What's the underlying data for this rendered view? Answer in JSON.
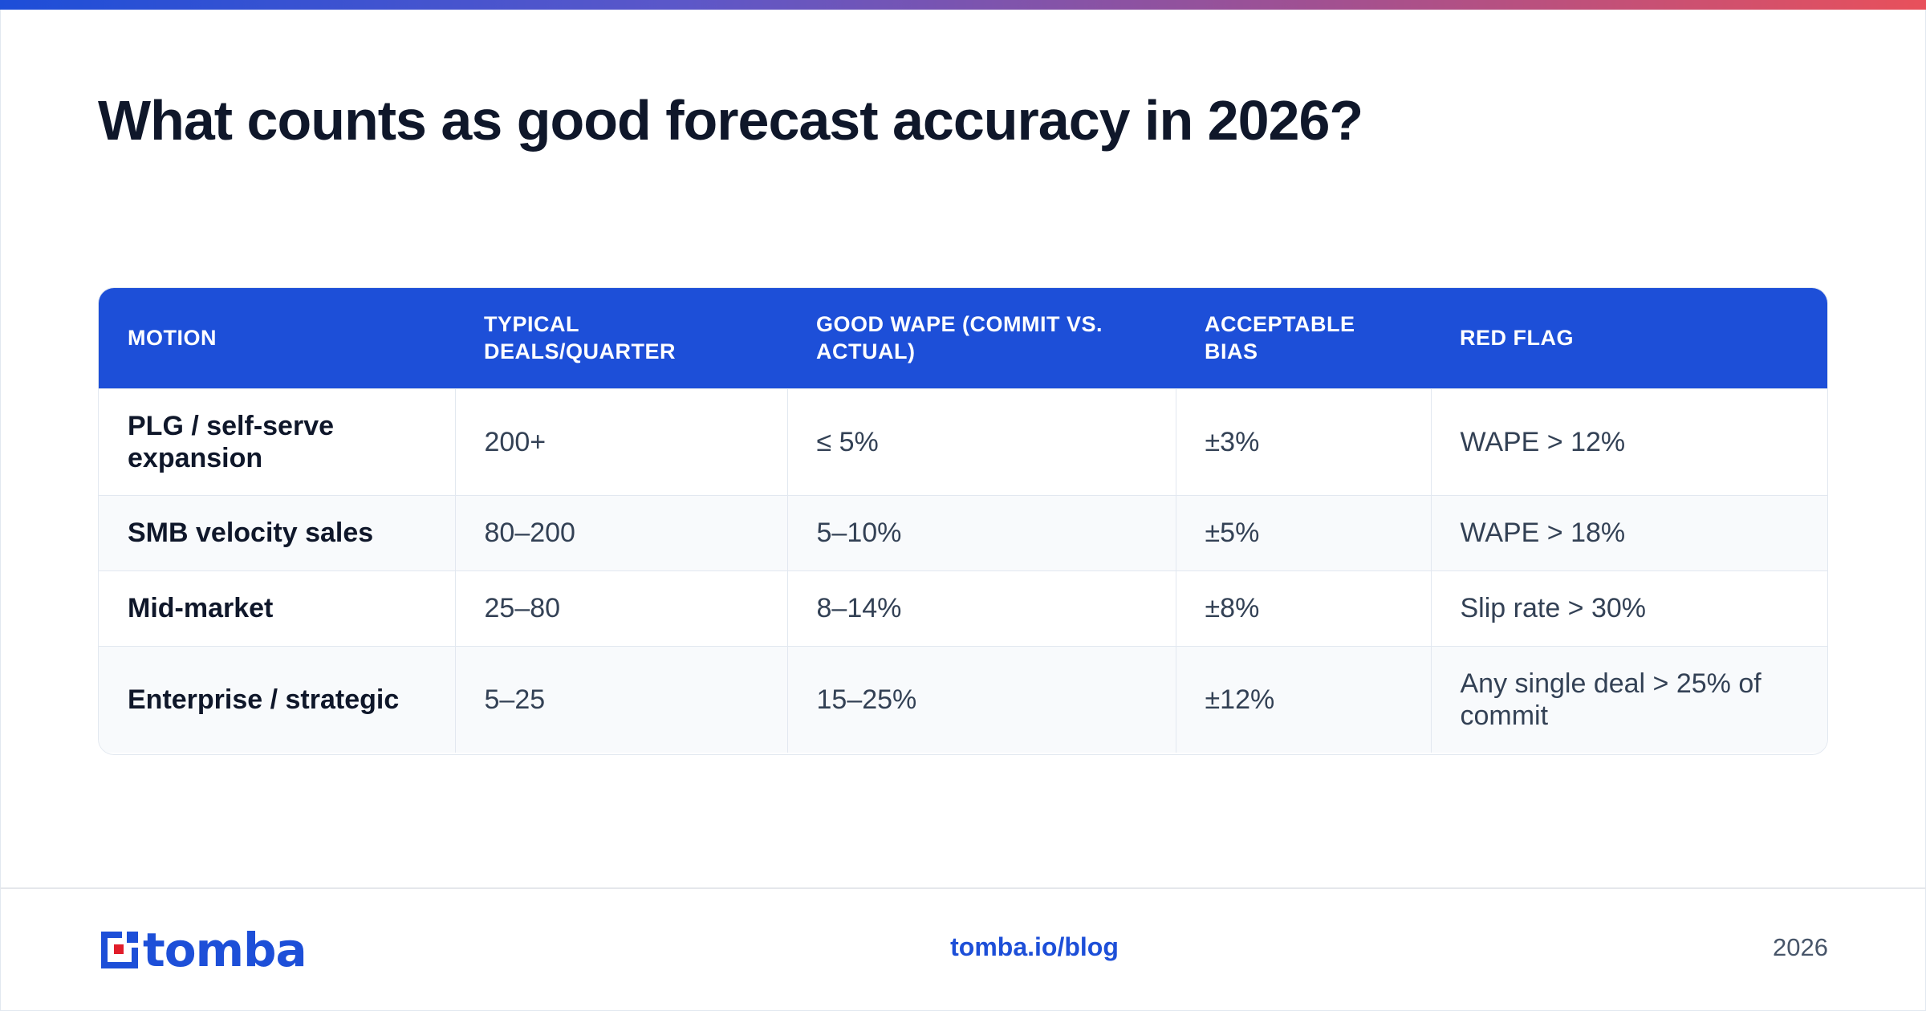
{
  "title": "What counts as good forecast accuracy in 2026?",
  "table": {
    "headers": [
      "MOTION",
      "TYPICAL DEALS/QUARTER",
      "GOOD WAPE (COMMIT VS. ACTUAL)",
      "ACCEPTABLE BIAS",
      "RED FLAG"
    ],
    "rows": [
      {
        "motion": "PLG / self-serve expansion",
        "deals": "200+",
        "wape": "≤ 5%",
        "bias": "±3%",
        "red_flag": "WAPE > 12%"
      },
      {
        "motion": "SMB velocity sales",
        "deals": "80–200",
        "wape": "5–10%",
        "bias": "±5%",
        "red_flag": "WAPE > 18%"
      },
      {
        "motion": "Mid-market",
        "deals": "25–80",
        "wape": "8–14%",
        "bias": "±8%",
        "red_flag": "Slip rate > 30%"
      },
      {
        "motion": "Enterprise / strategic",
        "deals": "5–25",
        "wape": "15–25%",
        "bias": "±12%",
        "red_flag": "Any single deal > 25% of commit"
      }
    ]
  },
  "footer": {
    "logo_text": "tomba",
    "url": "tomba.io/blog",
    "year": "2026"
  },
  "colors": {
    "accent": "#1d4fd8",
    "brand_red": "#e11d2a",
    "title": "#0f172a",
    "row_alt": "#f8fafc"
  }
}
